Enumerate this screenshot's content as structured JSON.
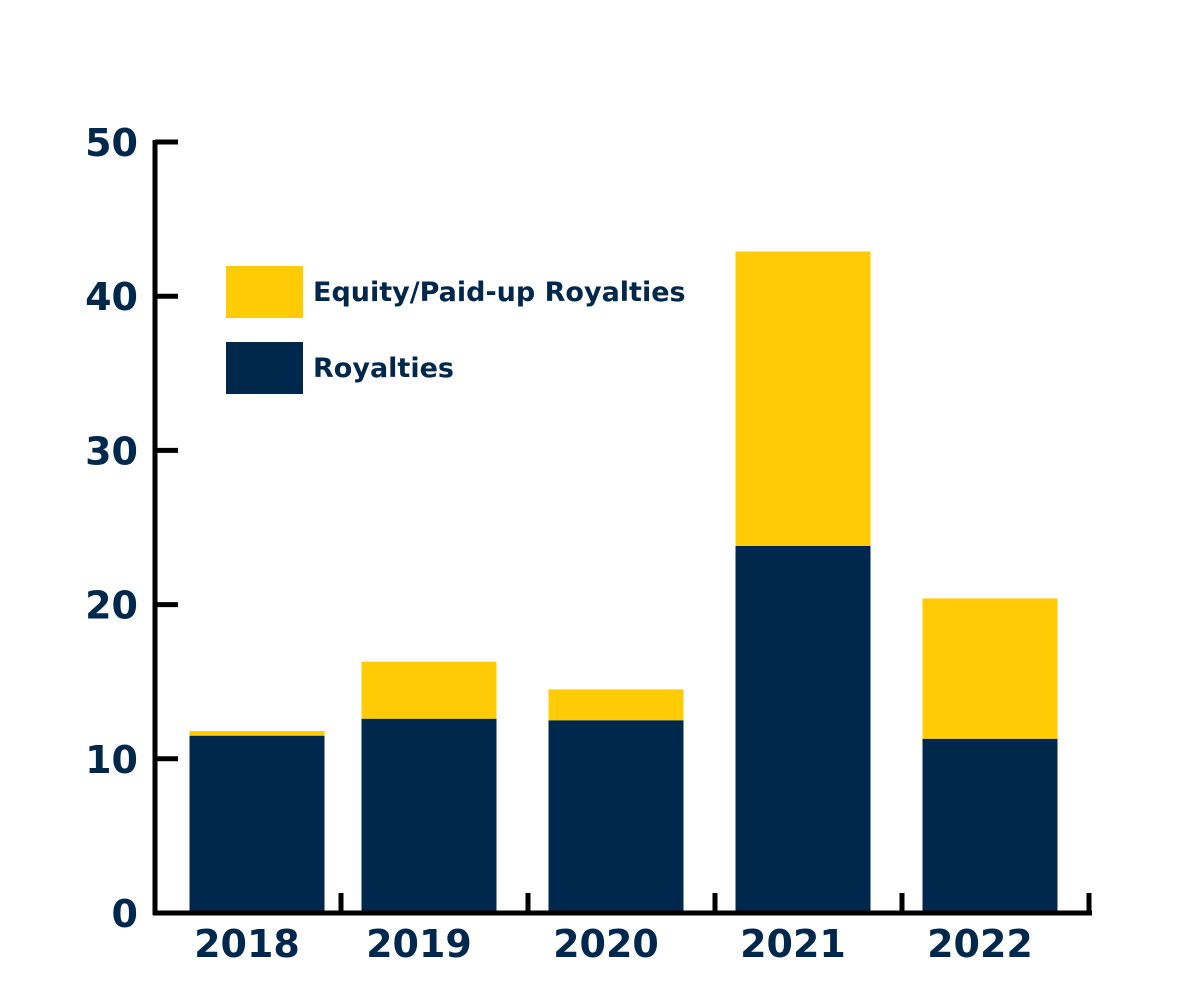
{
  "chart_data": {
    "type": "bar",
    "stacked": true,
    "title": "",
    "xlabel": "",
    "ylabel": "",
    "categories": [
      "2018",
      "2019",
      "2020",
      "2021",
      "2022"
    ],
    "series": [
      {
        "name": "Royalties",
        "values": [
          11.5,
          12.6,
          12.5,
          23.8,
          11.3
        ],
        "color": "#00274c"
      },
      {
        "name": "Equity/Paid-up Royalties",
        "values": [
          0.3,
          3.7,
          2.0,
          19.1,
          9.1
        ],
        "color": "#ffcb05"
      }
    ],
    "ylim": [
      0,
      50
    ],
    "yticks": [
      "0",
      "10",
      "20",
      "30",
      "40",
      "50"
    ],
    "grid": false,
    "legend_position": "top-left",
    "text_color": "#00274c",
    "axis_color": "#000000"
  }
}
